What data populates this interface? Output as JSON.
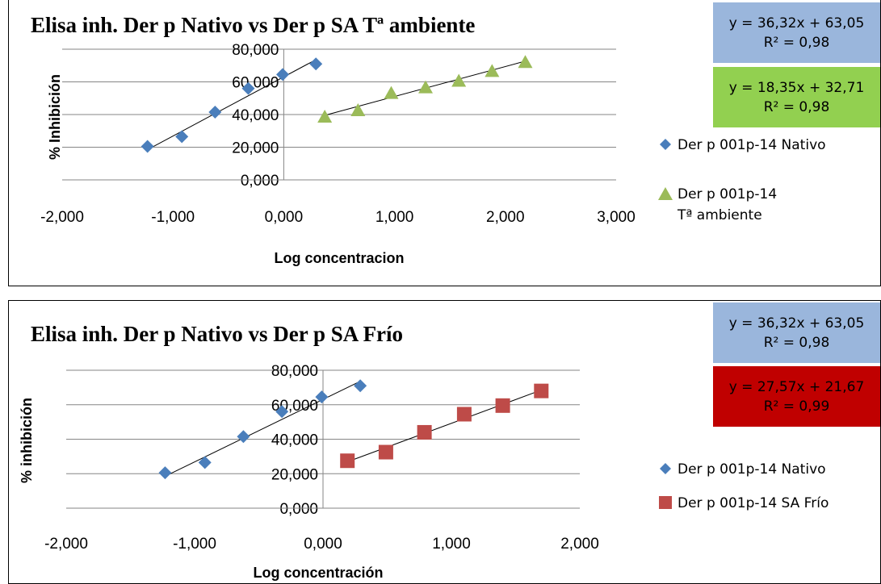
{
  "colors": {
    "native": "#4a7ebb",
    "ambient": "#9bbb59",
    "cold": "#be4b48",
    "box_blue": "#9ab6dc",
    "box_green": "#92d050",
    "box_red": "#c00000"
  },
  "chart_data": [
    {
      "type": "scatter",
      "title": "Elisa inh. Der p Nativo vs Der p SA Tª ambiente",
      "xlabel": "Log concentracion",
      "ylabel": "% Inhibición",
      "xlim": [
        -2,
        3
      ],
      "ylim": [
        0,
        80
      ],
      "x_ticks": [
        "-2,000",
        "-1,000",
        "0,000",
        "1,000",
        "2,000",
        "3,000"
      ],
      "y_ticks": [
        "0,000",
        "20,000",
        "40,000",
        "60,000",
        "80,000"
      ],
      "grid": "horizontal",
      "legend": "right",
      "series": [
        {
          "name": "Der p 001p-14 Nativo",
          "marker": "diamond",
          "color": "#4a7ebb",
          "x": [
            -1.23,
            -0.92,
            -0.62,
            -0.32,
            -0.01,
            0.29
          ],
          "y": [
            20.5,
            26.5,
            41.5,
            56.0,
            64.5,
            71.0
          ],
          "equation": "y = 36,32x + 63,05",
          "r2": "R² = 0,98",
          "trend": [
            [
              -1.23,
              18.5
            ],
            [
              0.29,
              73.6
            ]
          ]
        },
        {
          "name": "Der p 001p-14 Tª ambiente",
          "marker": "triangle",
          "color": "#9bbb59",
          "x": [
            0.37,
            0.67,
            0.97,
            1.28,
            1.58,
            1.88,
            2.18
          ],
          "y": [
            38.5,
            42.5,
            53.0,
            56.5,
            60.5,
            66.5,
            72.0
          ],
          "equation": "y = 18,35x + 32,71",
          "r2": "R² = 0,98",
          "trend": [
            [
              0.37,
              39.5
            ],
            [
              2.18,
              72.7
            ]
          ]
        }
      ]
    },
    {
      "type": "scatter",
      "title": "Elisa inh. Der p Nativo vs Der p SA Frío",
      "xlabel": "Log concentración",
      "ylabel": "% inhibición",
      "xlim": [
        -2,
        2
      ],
      "ylim": [
        0,
        80
      ],
      "x_ticks": [
        "-2,000",
        "-1,000",
        "0,000",
        "1,000",
        "2,000"
      ],
      "y_ticks": [
        "0,000",
        "20,000",
        "40,000",
        "60,000",
        "80,000"
      ],
      "grid": "horizontal",
      "legend": "right",
      "series": [
        {
          "name": "Der p 001p-14 Nativo",
          "marker": "diamond",
          "color": "#4a7ebb",
          "x": [
            -1.23,
            -0.92,
            -0.62,
            -0.32,
            -0.01,
            0.29
          ],
          "y": [
            20.5,
            26.5,
            41.5,
            56.0,
            64.5,
            71.0
          ],
          "equation": "y = 36,32x + 63,05",
          "r2": "R² = 0,98",
          "trend": [
            [
              -1.23,
              18.5
            ],
            [
              0.29,
              73.6
            ]
          ]
        },
        {
          "name": "Der p 001p-14  SA Frío",
          "marker": "square",
          "color": "#be4b48",
          "x": [
            0.19,
            0.49,
            0.79,
            1.1,
            1.4,
            1.7
          ],
          "y": [
            27.5,
            32.5,
            44.0,
            54.5,
            59.5,
            68.0
          ],
          "equation": "y = 27,57x + 21,67",
          "r2": "R² = 0,99",
          "trend": [
            [
              0.19,
              26.9
            ],
            [
              1.7,
              68.5
            ]
          ]
        }
      ]
    }
  ]
}
